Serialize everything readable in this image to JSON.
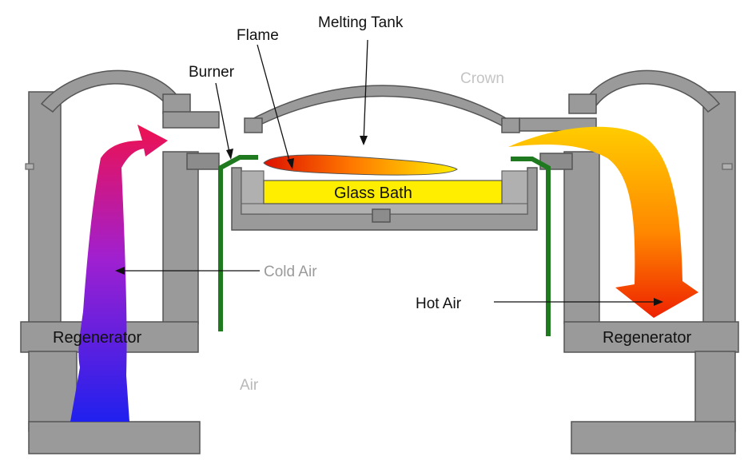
{
  "labels": {
    "melting_tank": "Melting Tank",
    "flame": "Flame",
    "burner": "Burner",
    "crown": "Crown",
    "glass_bath": "Glass Bath",
    "cold_air": "Cold Air",
    "hot_air": "Hot Air",
    "regenerator_left": "Regenerator",
    "regenerator_right": "Regenerator",
    "air_bottom": "Air"
  },
  "colors": {
    "structure": "#9a9a9a",
    "outline": "#555555",
    "glass_bath": "#ffee00",
    "pipe": "#1f7a1f",
    "cold_air_top": "#ee1150",
    "cold_air_mid": "#a020d0",
    "cold_air_bottom": "#2020ee",
    "hot_air_start": "#ffcc00",
    "hot_air_end": "#ee2200",
    "flame_start": "#dd1100",
    "flame_end": "#ffee00"
  }
}
